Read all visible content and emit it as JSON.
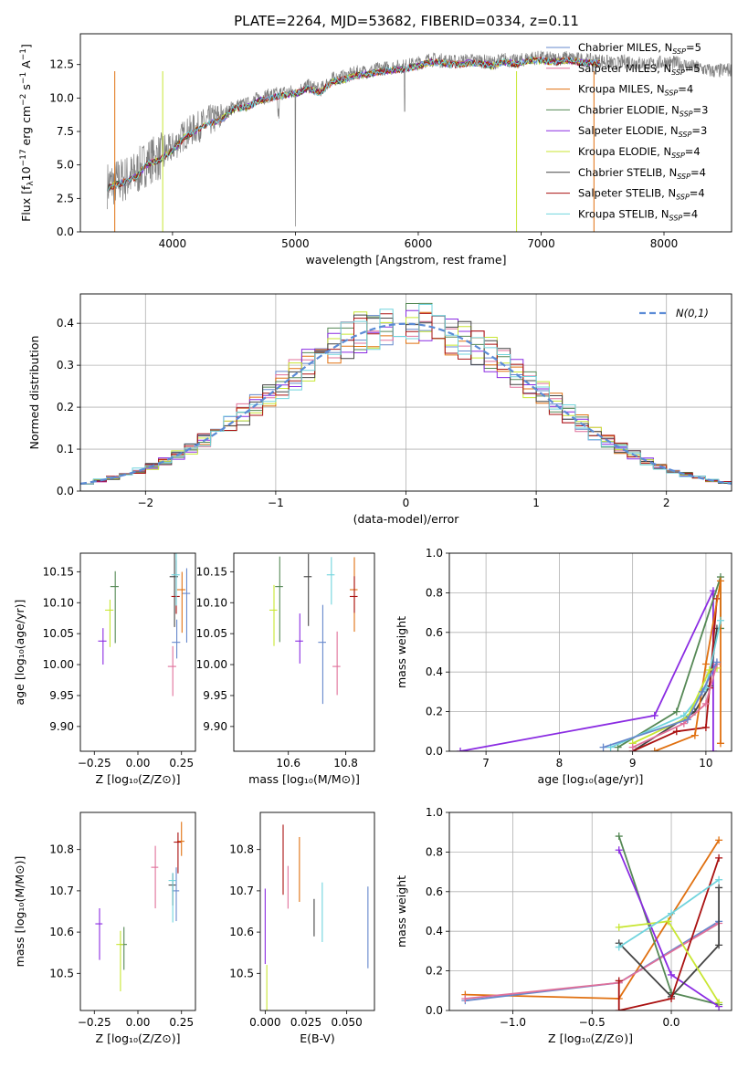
{
  "figure": {
    "title": "PLATE=2264, MJD=53682, FIBERID=0334, z=0.11"
  },
  "chart_data": [
    {
      "id": "spectrum",
      "type": "line",
      "xlabel": "wavelength [Angstrom, rest frame]",
      "ylabel": "Flux [f_λ 10^-17 erg cm^-2 s^-1 A^-1]",
      "xlim": [
        3250,
        8550
      ],
      "ylim": [
        0,
        14.8
      ],
      "xticks": [
        4000,
        5000,
        6000,
        7000,
        8000
      ],
      "yticks": [
        0.0,
        2.5,
        5.0,
        7.5,
        10.0,
        12.5
      ],
      "legend": "upper right",
      "data_line": {
        "color": "#808080",
        "continuum": [
          [
            3470,
            3.5
          ],
          [
            3600,
            3.9
          ],
          [
            3700,
            4.3
          ],
          [
            3800,
            5.3
          ],
          [
            3900,
            5.6
          ],
          [
            4000,
            6.3
          ],
          [
            4100,
            7.3
          ],
          [
            4200,
            7.8
          ],
          [
            4300,
            8.3
          ],
          [
            4400,
            8.6
          ],
          [
            4500,
            9.4
          ],
          [
            4600,
            9.5
          ],
          [
            4700,
            10.0
          ],
          [
            4800,
            10.2
          ],
          [
            4900,
            10.4
          ],
          [
            5000,
            10.5
          ],
          [
            5100,
            10.9
          ],
          [
            5200,
            10.6
          ],
          [
            5300,
            11.4
          ],
          [
            5400,
            11.6
          ],
          [
            5500,
            11.9
          ],
          [
            5600,
            12.0
          ],
          [
            5700,
            12.2
          ],
          [
            5800,
            12.3
          ],
          [
            5900,
            12.4
          ],
          [
            6000,
            12.6
          ],
          [
            6100,
            12.9
          ],
          [
            6200,
            12.8
          ],
          [
            6300,
            12.7
          ],
          [
            6400,
            12.8
          ],
          [
            6500,
            12.8
          ],
          [
            6600,
            12.6
          ],
          [
            6700,
            12.9
          ],
          [
            6800,
            12.7
          ],
          [
            6900,
            13.0
          ],
          [
            7000,
            13.0
          ],
          [
            7100,
            12.9
          ],
          [
            7200,
            13.0
          ],
          [
            7300,
            12.9
          ],
          [
            7400,
            12.8
          ],
          [
            7500,
            12.8
          ],
          [
            7600,
            12.5
          ],
          [
            7700,
            12.8
          ],
          [
            7800,
            12.6
          ],
          [
            7900,
            12.5
          ],
          [
            8000,
            12.7
          ],
          [
            8100,
            12.6
          ],
          [
            8200,
            12.4
          ],
          [
            8300,
            12.2
          ],
          [
            8400,
            12.0
          ],
          [
            8500,
            12.1
          ],
          [
            8550,
            12.1
          ]
        ]
      },
      "series": [
        {
          "name": "Chabrier MILES, N_SSP=5",
          "color": "#6688cc"
        },
        {
          "name": "Salpeter MILES, N_SSP=5",
          "color": "#e0709a"
        },
        {
          "name": "Kroupa MILES, N_SSP=4",
          "color": "#e07010"
        },
        {
          "name": "Chabrier ELODIE, N_SSP=3",
          "color": "#558855"
        },
        {
          "name": "Salpeter ELODIE, N_SSP=3",
          "color": "#8a2be2"
        },
        {
          "name": "Kroupa ELODIE, N_SSP=4",
          "color": "#c8e632"
        },
        {
          "name": "Chabrier STELIB, N_SSP=4",
          "color": "#444444"
        },
        {
          "name": "Salpeter STELIB, N_SSP=4",
          "color": "#aa1111"
        },
        {
          "name": "Kroupa STELIB, N_SSP=4",
          "color": "#70d4dd"
        }
      ]
    },
    {
      "id": "residuals",
      "type": "line",
      "xlabel": "(data-model)/error",
      "ylabel": "Normed distribution",
      "xlim": [
        -2.5,
        2.5
      ],
      "ylim": [
        0,
        0.47
      ],
      "xticks": [
        -2,
        -1,
        0,
        1,
        2
      ],
      "yticks": [
        0.0,
        0.1,
        0.2,
        0.3,
        0.4
      ],
      "grid": true,
      "legend": "upper right",
      "reference": {
        "name": "N(0,1)",
        "mean": 0,
        "sigma": 1,
        "color": "#5b8bd6"
      },
      "bin_width": 0.1,
      "colors": [
        "#6688cc",
        "#e0709a",
        "#e07010",
        "#558855",
        "#8a2be2",
        "#c8e632",
        "#444444",
        "#aa1111",
        "#70d4dd"
      ]
    },
    {
      "id": "age-vs-Z",
      "type": "scatter",
      "xlabel": "Z [log10(Z/Z⊙)]",
      "ylabel": "age [log10(age/yr)]",
      "xlim": [
        -0.33,
        0.33
      ],
      "ylim": [
        9.86,
        10.18
      ],
      "xticks": [
        -0.25,
        0.0,
        0.25
      ],
      "yticks": [
        9.9,
        9.95,
        10.0,
        10.05,
        10.1,
        10.15
      ],
      "xticklabels": [
        "−0.25",
        "0.00",
        "0.25"
      ],
      "points": [
        {
          "x": 0.28,
          "y": 10.115,
          "color": "#6688cc"
        },
        {
          "x": 0.223,
          "y": 10.036,
          "color": "#6688cc"
        },
        {
          "x": 0.2,
          "y": 9.997,
          "color": "#e0709a"
        },
        {
          "x": 0.253,
          "y": 10.121,
          "color": "#e07010"
        },
        {
          "x": -0.13,
          "y": 10.126,
          "color": "#558855"
        },
        {
          "x": -0.2,
          "y": 10.038,
          "color": "#8a2be2"
        },
        {
          "x": -0.16,
          "y": 10.088,
          "color": "#c8e632"
        },
        {
          "x": 0.21,
          "y": 10.142,
          "color": "#444444"
        },
        {
          "x": 0.22,
          "y": 10.11,
          "color": "#aa1111"
        },
        {
          "x": 0.22,
          "y": 10.145,
          "color": "#70d4dd"
        }
      ]
    },
    {
      "id": "age-vs-mass",
      "type": "scatter",
      "xlabel": "mass [log10(M/M⊙)]",
      "ylabel": "",
      "xlim": [
        10.41,
        10.9
      ],
      "ylim": [
        9.86,
        10.18
      ],
      "xticks": [
        10.6,
        10.8
      ],
      "yticks": [
        9.9,
        9.95,
        10.0,
        10.05,
        10.1,
        10.15
      ],
      "points": [
        {
          "x": 10.72,
          "y": 10.036,
          "color": "#6688cc"
        },
        {
          "x": 10.77,
          "y": 9.997,
          "color": "#e0709a"
        },
        {
          "x": 10.83,
          "y": 10.121,
          "color": "#e07010"
        },
        {
          "x": 10.57,
          "y": 10.126,
          "color": "#558855"
        },
        {
          "x": 10.64,
          "y": 10.038,
          "color": "#8a2be2"
        },
        {
          "x": 10.55,
          "y": 10.088,
          "color": "#c8e632"
        },
        {
          "x": 10.67,
          "y": 10.142,
          "color": "#444444"
        },
        {
          "x": 10.83,
          "y": 10.11,
          "color": "#aa1111"
        },
        {
          "x": 10.75,
          "y": 10.145,
          "color": "#70d4dd"
        }
      ]
    },
    {
      "id": "massweight-vs-age",
      "type": "line",
      "xlabel": "age [log10(age/yr)]",
      "ylabel": "mass weight",
      "xlim": [
        6.5,
        10.35
      ],
      "ylim": [
        0,
        1.0
      ],
      "xticks": [
        7,
        8,
        9,
        10
      ],
      "yticks": [
        0.0,
        0.2,
        0.4,
        0.6,
        0.8,
        1.0
      ],
      "grid": true,
      "series": [
        {
          "color": "#8a2be2",
          "points": [
            [
              6.65,
              0.0
            ],
            [
              9.3,
              0.18
            ],
            [
              10.1,
              0.81
            ],
            [
              10.1,
              0.0
            ]
          ]
        },
        {
          "color": "#558855",
          "points": [
            [
              8.8,
              0.02
            ],
            [
              9.6,
              0.2
            ],
            [
              10.2,
              0.88
            ],
            [
              10.2,
              0.62
            ]
          ]
        },
        {
          "color": "#444444",
          "points": [
            [
              9.0,
              0.0
            ],
            [
              9.85,
              0.2
            ],
            [
              10.05,
              0.33
            ],
            [
              10.15,
              0.62
            ]
          ]
        },
        {
          "color": "#aa1111",
          "points": [
            [
              9.0,
              0.0
            ],
            [
              9.6,
              0.1
            ],
            [
              10.0,
              0.12
            ],
            [
              10.05,
              0.32
            ],
            [
              10.15,
              0.77
            ]
          ]
        },
        {
          "color": "#e07010",
          "points": [
            [
              9.3,
              0.0
            ],
            [
              9.85,
              0.08
            ],
            [
              10.0,
              0.44
            ],
            [
              10.2,
              0.86
            ],
            [
              10.2,
              0.04
            ]
          ]
        },
        {
          "color": "#70d4dd",
          "points": [
            [
              8.7,
              0.02
            ],
            [
              9.7,
              0.18
            ],
            [
              10.0,
              0.32
            ],
            [
              10.2,
              0.66
            ]
          ]
        },
        {
          "color": "#c8e632",
          "points": [
            [
              9.0,
              0.04
            ],
            [
              9.75,
              0.17
            ],
            [
              10.05,
              0.41
            ],
            [
              10.15,
              0.42
            ]
          ]
        },
        {
          "color": "#e0709a",
          "points": [
            [
              9.0,
              0.02
            ],
            [
              9.7,
              0.14
            ],
            [
              10.0,
              0.24
            ],
            [
              10.15,
              0.44
            ]
          ]
        },
        {
          "color": "#6688cc",
          "points": [
            [
              8.6,
              0.02
            ],
            [
              9.75,
              0.16
            ],
            [
              9.95,
              0.3
            ],
            [
              10.15,
              0.45
            ]
          ]
        }
      ]
    },
    {
      "id": "mass-vs-Z",
      "type": "scatter",
      "xlabel": "Z [log10(Z/Z⊙)]",
      "ylabel": "mass [log10(M/M⊙)]",
      "xlim": [
        -0.33,
        0.33
      ],
      "ylim": [
        10.41,
        10.89
      ],
      "xticks": [
        -0.25,
        0.0,
        0.25
      ],
      "yticks": [
        10.5,
        10.6,
        10.7,
        10.8
      ],
      "xticklabels": [
        "−0.25",
        "0.00",
        "0.25"
      ],
      "points": [
        {
          "x": 0.22,
          "y": 10.7,
          "color": "#6688cc"
        },
        {
          "x": 0.1,
          "y": 10.757,
          "color": "#e0709a"
        },
        {
          "x": 0.25,
          "y": 10.82,
          "color": "#e07010"
        },
        {
          "x": -0.08,
          "y": 10.57,
          "color": "#558855"
        },
        {
          "x": -0.22,
          "y": 10.62,
          "color": "#8a2be2"
        },
        {
          "x": -0.1,
          "y": 10.57,
          "color": "#c8e632"
        },
        {
          "x": 0.2,
          "y": 10.714,
          "color": "#444444"
        },
        {
          "x": 0.23,
          "y": 10.818,
          "color": "#aa1111"
        },
        {
          "x": 0.2,
          "y": 10.725,
          "color": "#70d4dd"
        }
      ]
    },
    {
      "id": "mass-vs-EBV",
      "type": "scatter",
      "xlabel": "E(B-V)",
      "ylabel": "",
      "xlim": [
        -0.003,
        0.067
      ],
      "ylim": [
        10.41,
        10.89
      ],
      "xticks": [
        0.0,
        0.025,
        0.05
      ],
      "yticks": [
        10.5,
        10.6,
        10.7,
        10.8
      ],
      "xticklabels": [
        "0.000",
        "0.025",
        "0.050"
      ],
      "points": [
        {
          "x": 0.0,
          "y": 10.665,
          "color": "#8a2be2"
        },
        {
          "x": 0.001,
          "y": 10.48,
          "color": "#c8e632"
        },
        {
          "x": 0.011,
          "y": 10.82,
          "color": "#aa1111"
        },
        {
          "x": 0.014,
          "y": 10.72,
          "color": "#e0709a"
        },
        {
          "x": 0.021,
          "y": 10.79,
          "color": "#e07010"
        },
        {
          "x": 0.03,
          "y": 10.64,
          "color": "#444444"
        },
        {
          "x": 0.035,
          "y": 10.68,
          "color": "#70d4dd"
        },
        {
          "x": 0.063,
          "y": 10.67,
          "color": "#6688cc"
        }
      ]
    },
    {
      "id": "massweight-vs-Z",
      "type": "line",
      "xlabel": "Z [log10(Z/Z⊙)]",
      "ylabel": "mass weight",
      "xlim": [
        -1.4,
        0.38
      ],
      "ylim": [
        0,
        1.0
      ],
      "xticks": [
        -1.0,
        -0.5,
        0.0
      ],
      "yticks": [
        0.0,
        0.2,
        0.4,
        0.6,
        0.8,
        1.0
      ],
      "xticklabels": [
        "−1.0",
        "−0.5",
        "0.0"
      ],
      "grid": true,
      "series": [
        {
          "color": "#e07010",
          "points": [
            [
              -1.3,
              0.08
            ],
            [
              -0.33,
              0.06
            ],
            [
              0.3,
              0.86
            ]
          ]
        },
        {
          "color": "#6688cc",
          "points": [
            [
              -1.3,
              0.05
            ],
            [
              -0.33,
              0.14
            ],
            [
              0.3,
              0.45
            ]
          ]
        },
        {
          "color": "#e0709a",
          "points": [
            [
              -1.3,
              0.06
            ],
            [
              -0.33,
              0.14
            ],
            [
              0.3,
              0.44
            ]
          ]
        },
        {
          "color": "#558855",
          "points": [
            [
              -0.33,
              0.88
            ],
            [
              0.0,
              0.09
            ],
            [
              0.3,
              0.03
            ]
          ]
        },
        {
          "color": "#8a2be2",
          "points": [
            [
              -0.33,
              0.81
            ],
            [
              0.0,
              0.18
            ],
            [
              0.3,
              0.02
            ]
          ]
        },
        {
          "color": "#444444",
          "points": [
            [
              -0.33,
              0.34
            ],
            [
              0.0,
              0.07
            ],
            [
              0.3,
              0.33
            ],
            [
              0.3,
              0.62
            ]
          ]
        },
        {
          "color": "#aa1111",
          "points": [
            [
              -0.33,
              0.15
            ],
            [
              -0.33,
              0.0
            ],
            [
              0.0,
              0.06
            ],
            [
              0.3,
              0.77
            ]
          ]
        },
        {
          "color": "#c8e632",
          "points": [
            [
              -0.33,
              0.42
            ],
            [
              -0.02,
              0.45
            ],
            [
              0.3,
              0.04
            ]
          ]
        },
        {
          "color": "#70d4dd",
          "points": [
            [
              -0.33,
              0.32
            ],
            [
              0.0,
              0.49
            ],
            [
              0.3,
              0.66
            ]
          ]
        }
      ]
    }
  ]
}
